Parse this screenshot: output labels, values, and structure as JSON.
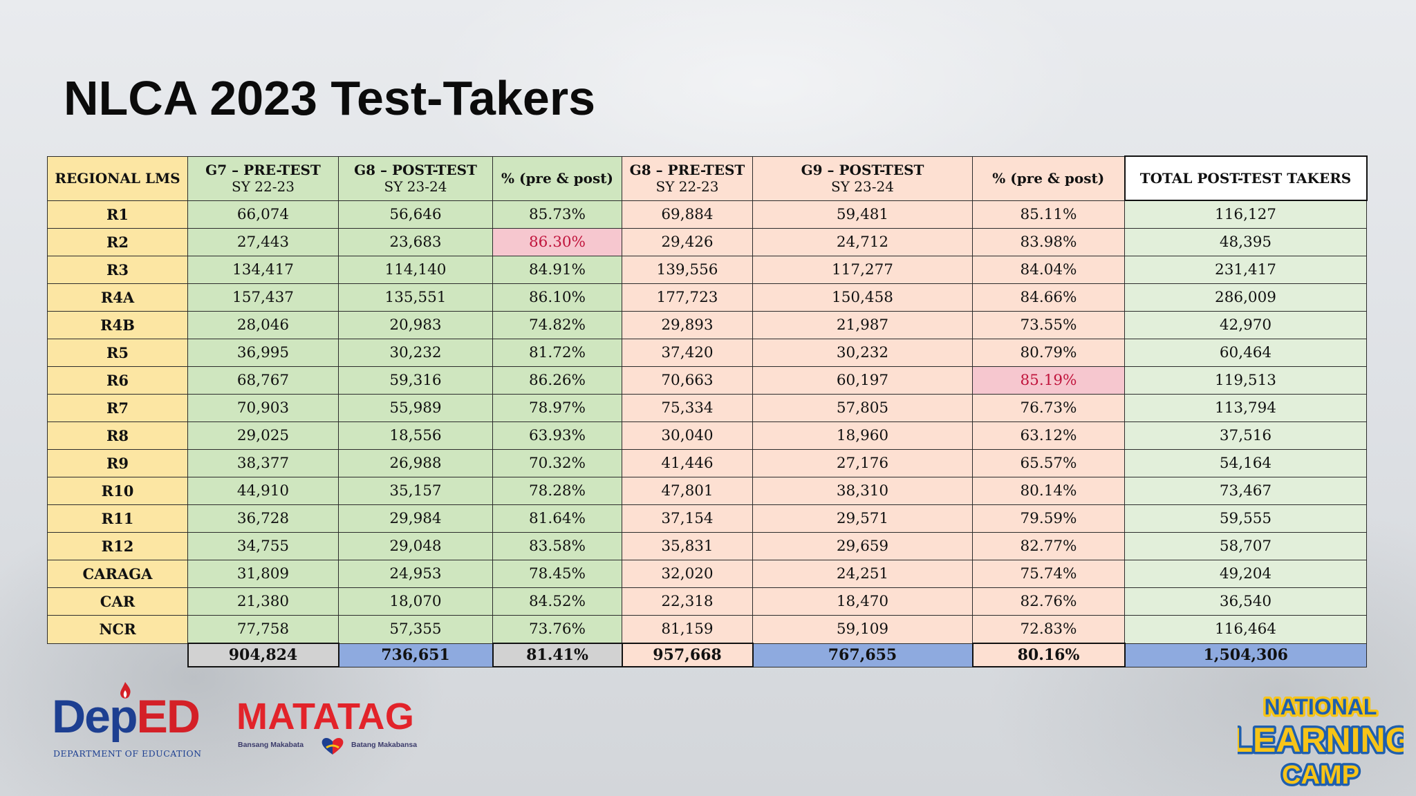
{
  "title": "NLCA 2023 Test-Takers",
  "columns": [
    {
      "title": "REGIONAL LMS",
      "sub": ""
    },
    {
      "title": "G7 – PRE-TEST",
      "sub": "SY 22-23"
    },
    {
      "title": "G8 – POST-TEST",
      "sub": "SY 23-24"
    },
    {
      "title": "% (pre & post)",
      "sub": ""
    },
    {
      "title": "G8 – PRE-TEST",
      "sub": "SY 22-23"
    },
    {
      "title": "G9 – POST-TEST",
      "sub": "SY 23-24"
    },
    {
      "title": "% (pre & post)",
      "sub": ""
    },
    {
      "title": "TOTAL POST-TEST TAKERS",
      "sub": ""
    }
  ],
  "rows": [
    [
      "R1",
      "66,074",
      "56,646",
      "85.73%",
      "69,884",
      "59,481",
      "85.11%",
      "116,127"
    ],
    [
      "R2",
      "27,443",
      "23,683",
      "86.30%",
      "29,426",
      "24,712",
      "83.98%",
      "48,395"
    ],
    [
      "R3",
      "134,417",
      "114,140",
      "84.91%",
      "139,556",
      "117,277",
      "84.04%",
      "231,417"
    ],
    [
      "R4A",
      "157,437",
      "135,551",
      "86.10%",
      "177,723",
      "150,458",
      "84.66%",
      "286,009"
    ],
    [
      "R4B",
      "28,046",
      "20,983",
      "74.82%",
      "29,893",
      "21,987",
      "73.55%",
      "42,970"
    ],
    [
      "R5",
      "36,995",
      "30,232",
      "81.72%",
      "37,420",
      "30,232",
      "80.79%",
      "60,464"
    ],
    [
      "R6",
      "68,767",
      "59,316",
      "86.26%",
      "70,663",
      "60,197",
      "85.19%",
      "119,513"
    ],
    [
      "R7",
      "70,903",
      "55,989",
      "78.97%",
      "75,334",
      "57,805",
      "76.73%",
      "113,794"
    ],
    [
      "R8",
      "29,025",
      "18,556",
      "63.93%",
      "30,040",
      "18,960",
      "63.12%",
      "37,516"
    ],
    [
      "R9",
      "38,377",
      "26,988",
      "70.32%",
      "41,446",
      "27,176",
      "65.57%",
      "54,164"
    ],
    [
      "R10",
      "44,910",
      "35,157",
      "78.28%",
      "47,801",
      "38,310",
      "80.14%",
      "73,467"
    ],
    [
      "R11",
      "36,728",
      "29,984",
      "81.64%",
      "37,154",
      "29,571",
      "79.59%",
      "59,555"
    ],
    [
      "R12",
      "34,755",
      "29,048",
      "83.58%",
      "35,831",
      "29,659",
      "82.77%",
      "58,707"
    ],
    [
      "CARAGA",
      "31,809",
      "24,953",
      "78.45%",
      "32,020",
      "24,251",
      "75.74%",
      "49,204"
    ],
    [
      "CAR",
      "21,380",
      "18,070",
      "84.52%",
      "22,318",
      "18,470",
      "82.76%",
      "36,540"
    ],
    [
      "NCR",
      "77,758",
      "57,355",
      "73.76%",
      "81,159",
      "59,109",
      "72.83%",
      "116,464"
    ]
  ],
  "highlights": [
    {
      "row": 1,
      "col": 3
    },
    {
      "row": 6,
      "col": 6
    }
  ],
  "totals": [
    "",
    "904,824",
    "736,651",
    "81.41%",
    "957,668",
    "767,655",
    "80.16%",
    "1,504,306"
  ],
  "logos": {
    "deped": {
      "left": "De",
      "mid": "p",
      "right": "ED",
      "sub": "DEPARTMENT OF EDUCATION"
    },
    "matatag": {
      "word": "MATATAG",
      "left_tag": "Bansang Makabata",
      "right_tag": "Batang Makabansa"
    },
    "nlc": [
      "NATIONAL",
      "LEARNING",
      "CAMP"
    ]
  },
  "colors": {
    "region_col": "#fce6a3",
    "green_block": "#cfe6bf",
    "pink_block": "#fde0d2",
    "total_col": "#e2efda",
    "highlight_bg": "#f6c7cf",
    "highlight_text": "#c0143c",
    "total_grey": "#d2d2d2",
    "total_blue": "#8eaadf",
    "deped_blue": "#1d3f91",
    "deped_red": "#d42027",
    "matatag_red": "#e2232a",
    "nlc_yellow": "#f7c418",
    "nlc_blue": "#1f5fae"
  }
}
